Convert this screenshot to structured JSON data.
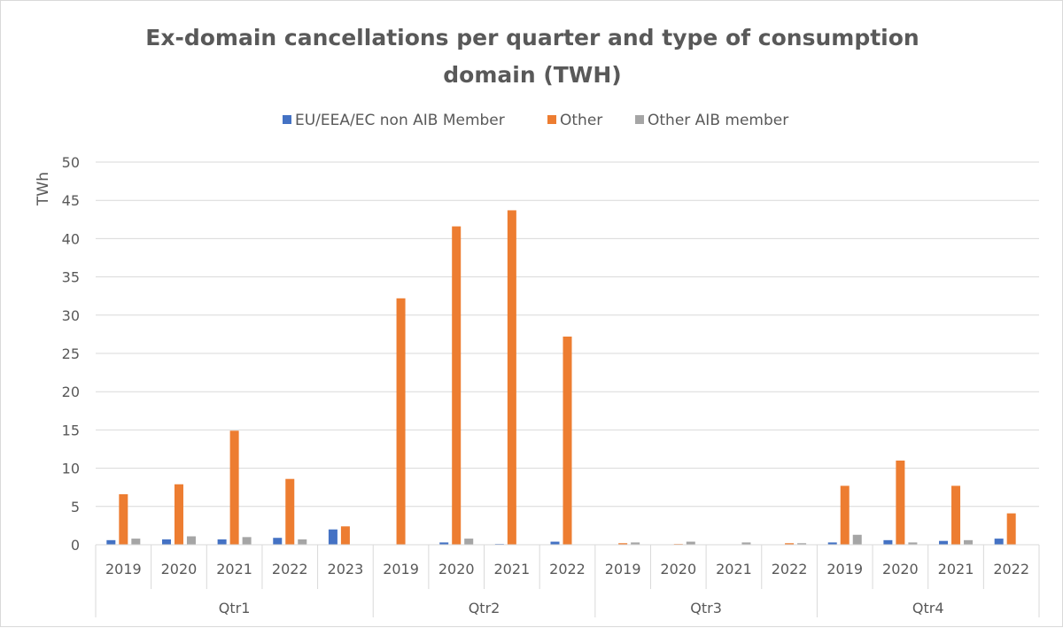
{
  "chart_data": {
    "type": "bar",
    "title": "Ex-domain cancellations per quarter and type of consumption domain (TWH)",
    "title_lines": [
      "Ex-domain cancellations per quarter and type of consumption",
      "domain (TWH)"
    ],
    "ylabel": "TWh",
    "ylim": [
      0,
      50
    ],
    "yticks": [
      0,
      5,
      10,
      15,
      20,
      25,
      30,
      35,
      40,
      45,
      50
    ],
    "grid": true,
    "legend_position": "top",
    "groups": [
      {
        "label": "Qtr1",
        "categories": [
          "2019",
          "2020",
          "2021",
          "2022",
          "2023"
        ]
      },
      {
        "label": "Qtr2",
        "categories": [
          "2019",
          "2020",
          "2021",
          "2022"
        ]
      },
      {
        "label": "Qtr3",
        "categories": [
          "2019",
          "2020",
          "2021",
          "2022"
        ]
      },
      {
        "label": "Qtr4",
        "categories": [
          "2019",
          "2020",
          "2021",
          "2022"
        ]
      }
    ],
    "series": [
      {
        "name": "EU/EEA/EC non AIB Member",
        "color": "#4472c4",
        "values": [
          0.6,
          0.7,
          0.7,
          0.9,
          2.0,
          0.0,
          0.3,
          0.1,
          0.4,
          0.0,
          0.0,
          0.0,
          0.0,
          0.3,
          0.6,
          0.5,
          0.8
        ]
      },
      {
        "name": "Other",
        "color": "#ed7d31",
        "values": [
          6.6,
          7.9,
          14.9,
          8.6,
          2.4,
          32.2,
          41.6,
          43.7,
          27.2,
          0.2,
          0.1,
          0.0,
          0.2,
          7.7,
          11.0,
          7.7,
          4.1
        ]
      },
      {
        "name": "Other AIB member",
        "color": "#a5a5a5",
        "values": [
          0.8,
          1.1,
          1.0,
          0.7,
          0.0,
          0.0,
          0.8,
          0.0,
          0.0,
          0.3,
          0.4,
          0.3,
          0.2,
          1.3,
          0.3,
          0.6,
          0.0
        ]
      }
    ]
  }
}
